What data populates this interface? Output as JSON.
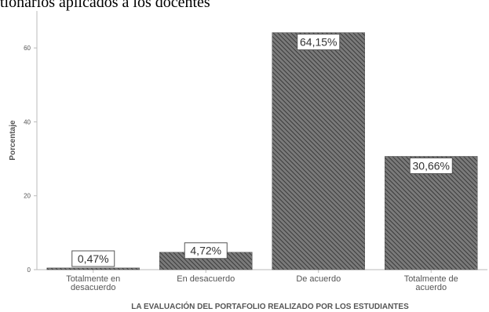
{
  "caption": "tionarios aplicados a los docentes",
  "chart_data": {
    "type": "bar",
    "title": "",
    "xlabel": "LA EVALUACIÓN DEL PORTAFOLIO REALIZADO POR LOS ESTUDIANTES",
    "ylabel": "Porcentaje",
    "ylim": [
      0,
      70
    ],
    "yticks": [
      0,
      20,
      40,
      60
    ],
    "categories": [
      [
        "Totalmente en",
        "desacuerdo"
      ],
      [
        "En desacuerdo"
      ],
      [
        "De acuerdo"
      ],
      [
        "Totalmente de",
        "acuerdo"
      ]
    ],
    "values": [
      0.47,
      4.72,
      64.15,
      30.66
    ],
    "data_labels": [
      "0,47%",
      "4,72%",
      "64,15%",
      "30,66%"
    ],
    "grid": false,
    "legend": "none",
    "colors": {
      "bar_fill": "#7a7a7a",
      "hatch": "#3a3a3a",
      "axis": "#bbbbbb",
      "label_border": "#555555"
    }
  }
}
